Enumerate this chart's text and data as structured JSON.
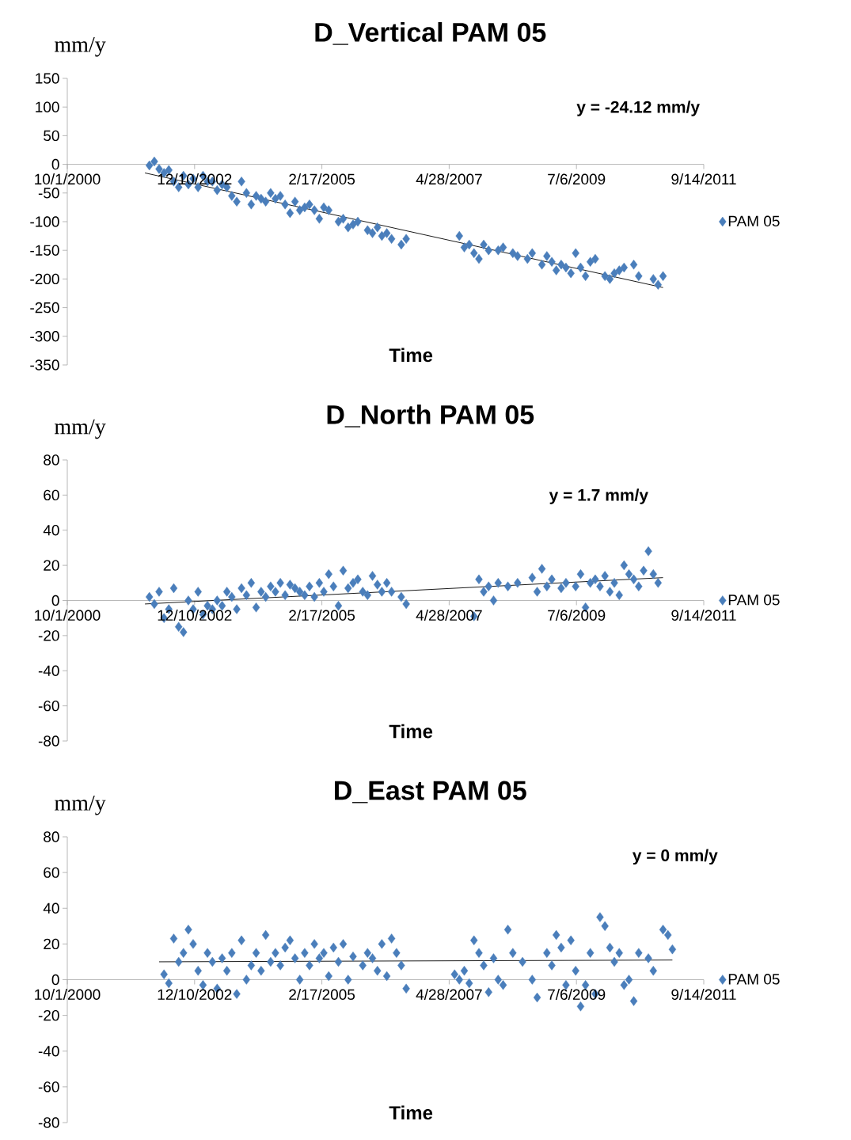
{
  "chart_data": [
    {
      "type": "scatter",
      "title": "D_Vertical PAM 05",
      "xlabel": "Time",
      "ylabel": "mm/y",
      "legend": "right",
      "annotations": [
        "y = -24.12 mm/y"
      ],
      "xlim": [
        "2000-10-01",
        "2011-09-14"
      ],
      "xticks": [
        {
          "value": "2000-10-01",
          "label": "10/1/2000"
        },
        {
          "value": "2002-12-10",
          "label": "12/10/2002"
        },
        {
          "value": "2005-02-17",
          "label": "2/17/2005"
        },
        {
          "value": "2007-04-28",
          "label": "4/28/2007"
        },
        {
          "value": "2009-07-06",
          "label": "7/6/2009"
        },
        {
          "value": "2011-09-14",
          "label": "9/14/2011"
        }
      ],
      "ylim": [
        -350,
        150
      ],
      "yticks": [
        -350,
        -300,
        -250,
        -200,
        -150,
        -100,
        -50,
        0,
        50,
        100,
        150
      ],
      "series": [
        {
          "name": "PAM 05",
          "marker": "diamond",
          "color": "#4a7ebb",
          "x": [
            "2002-03",
            "2002-04",
            "2002-05",
            "2002-06",
            "2002-07",
            "2002-08",
            "2002-09",
            "2002-10",
            "2002-11",
            "2002-12",
            "2003-01",
            "2003-02",
            "2003-03",
            "2003-04",
            "2003-05",
            "2003-06",
            "2003-07",
            "2003-08",
            "2003-09",
            "2003-10",
            "2003-11",
            "2003-12",
            "2004-01",
            "2004-02",
            "2004-03",
            "2004-04",
            "2004-05",
            "2004-06",
            "2004-07",
            "2004-08",
            "2004-09",
            "2004-10",
            "2004-11",
            "2004-12",
            "2005-01",
            "2005-02",
            "2005-03",
            "2005-04",
            "2005-06",
            "2005-07",
            "2005-08",
            "2005-09",
            "2005-10",
            "2005-12",
            "2006-01",
            "2006-02",
            "2006-03",
            "2006-04",
            "2006-05",
            "2006-07",
            "2006-08",
            "2007-07",
            "2007-08",
            "2007-09",
            "2007-10",
            "2007-11",
            "2007-12",
            "2008-01",
            "2008-03",
            "2008-04",
            "2008-06",
            "2008-07",
            "2008-09",
            "2008-10",
            "2008-12",
            "2009-01",
            "2009-02",
            "2009-03",
            "2009-04",
            "2009-05",
            "2009-06",
            "2009-07",
            "2009-08",
            "2009-09",
            "2009-10",
            "2009-11",
            "2010-01",
            "2010-02",
            "2010-03",
            "2010-04",
            "2010-05",
            "2010-07",
            "2010-08",
            "2010-11",
            "2010-12",
            "2011-01"
          ],
          "values": [
            -2,
            5,
            -8,
            -15,
            -10,
            -30,
            -40,
            -20,
            -35,
            -25,
            -40,
            -20,
            -30,
            -30,
            -45,
            -35,
            -40,
            -55,
            -65,
            -30,
            -50,
            -70,
            -55,
            -60,
            -65,
            -50,
            -60,
            -55,
            -70,
            -85,
            -65,
            -80,
            -75,
            -70,
            -80,
            -95,
            -75,
            -80,
            -100,
            -95,
            -110,
            -105,
            -100,
            -115,
            -120,
            -110,
            -125,
            -120,
            -130,
            -140,
            -130,
            -125,
            -145,
            -140,
            -155,
            -165,
            -140,
            -150,
            -150,
            -145,
            -155,
            -160,
            -165,
            -155,
            -175,
            -160,
            -170,
            -185,
            -175,
            -180,
            -190,
            -155,
            -180,
            -195,
            -170,
            -165,
            -195,
            -200,
            -190,
            -185,
            -180,
            -175,
            -195,
            -200,
            -210,
            -195
          ]
        },
        {
          "type": "line",
          "color": "#000000",
          "x": [
            "2002-02",
            "2011-01"
          ],
          "values": [
            -15,
            -215
          ]
        }
      ]
    },
    {
      "type": "scatter",
      "title": "D_North PAM 05",
      "xlabel": "Time",
      "ylabel": "mm/y",
      "legend": "right",
      "annotations": [
        "y = 1.7 mm/y"
      ],
      "xlim": [
        "2000-10-01",
        "2011-09-14"
      ],
      "xticks": [
        {
          "value": "2000-10-01",
          "label": "10/1/2000"
        },
        {
          "value": "2002-12-10",
          "label": "12/10/2002"
        },
        {
          "value": "2005-02-17",
          "label": "2/17/2005"
        },
        {
          "value": "2007-04-28",
          "label": "4/28/2007"
        },
        {
          "value": "2009-07-06",
          "label": "7/6/2009"
        },
        {
          "value": "2011-09-14",
          "label": "9/14/2011"
        }
      ],
      "ylim": [
        -80,
        80
      ],
      "yticks": [
        -80,
        -60,
        -40,
        -20,
        0,
        20,
        40,
        60,
        80
      ],
      "series": [
        {
          "name": "PAM 05",
          "marker": "diamond",
          "color": "#4a7ebb",
          "x": [
            "2002-03",
            "2002-04",
            "2002-05",
            "2002-06",
            "2002-07",
            "2002-08",
            "2002-09",
            "2002-10",
            "2002-11",
            "2002-12",
            "2003-01",
            "2003-02",
            "2003-03",
            "2003-04",
            "2003-05",
            "2003-06",
            "2003-07",
            "2003-08",
            "2003-09",
            "2003-10",
            "2003-11",
            "2003-12",
            "2004-01",
            "2004-02",
            "2004-03",
            "2004-04",
            "2004-05",
            "2004-06",
            "2004-07",
            "2004-08",
            "2004-09",
            "2004-10",
            "2004-11",
            "2004-12",
            "2005-01",
            "2005-02",
            "2005-03",
            "2005-04",
            "2005-05",
            "2005-06",
            "2005-07",
            "2005-08",
            "2005-09",
            "2005-10",
            "2005-11",
            "2005-12",
            "2006-01",
            "2006-02",
            "2006-03",
            "2006-04",
            "2006-05",
            "2006-07",
            "2006-08",
            "2007-10",
            "2007-11",
            "2007-12",
            "2008-01",
            "2008-02",
            "2008-03",
            "2008-05",
            "2008-07",
            "2008-10",
            "2008-11",
            "2008-12",
            "2009-01",
            "2009-02",
            "2009-04",
            "2009-05",
            "2009-07",
            "2009-08",
            "2009-09",
            "2009-10",
            "2009-11",
            "2009-12",
            "2010-01",
            "2010-02",
            "2010-03",
            "2010-04",
            "2010-05",
            "2010-06",
            "2010-07",
            "2010-08",
            "2010-09",
            "2010-10",
            "2010-11",
            "2010-12"
          ],
          "values": [
            2,
            -2,
            5,
            -10,
            -5,
            7,
            -15,
            -18,
            0,
            -5,
            5,
            -8,
            -3,
            -5,
            0,
            -3,
            5,
            2,
            -5,
            7,
            3,
            10,
            -4,
            5,
            2,
            8,
            5,
            10,
            3,
            9,
            7,
            5,
            3,
            8,
            2,
            10,
            5,
            15,
            8,
            -3,
            17,
            7,
            10,
            12,
            5,
            3,
            14,
            9,
            5,
            10,
            5,
            2,
            -2,
            -9,
            12,
            5,
            8,
            0,
            10,
            8,
            10,
            13,
            5,
            18,
            8,
            12,
            7,
            10,
            8,
            15,
            -4,
            10,
            12,
            8,
            14,
            5,
            10,
            3,
            20,
            15,
            12,
            8,
            17,
            28,
            15,
            10
          ]
        },
        {
          "type": "line",
          "color": "#000000",
          "x": [
            "2002-02",
            "2011-01"
          ],
          "values": [
            -2,
            13
          ]
        }
      ]
    },
    {
      "type": "scatter",
      "title": "D_East PAM 05",
      "xlabel": "Time",
      "ylabel": "mm/y",
      "legend": "right",
      "annotations": [
        "y = 0 mm/y"
      ],
      "xlim": [
        "2000-10-01",
        "2011-09-14"
      ],
      "xticks": [
        {
          "value": "2000-10-01",
          "label": "10/1/2000"
        },
        {
          "value": "2002-12-10",
          "label": "12/10/2002"
        },
        {
          "value": "2005-02-17",
          "label": "2/17/2005"
        },
        {
          "value": "2007-04-28",
          "label": "4/28/2007"
        },
        {
          "value": "2009-07-06",
          "label": "7/6/2009"
        },
        {
          "value": "2011-09-14",
          "label": "9/14/2011"
        }
      ],
      "ylim": [
        -80,
        80
      ],
      "yticks": [
        -80,
        -60,
        -40,
        -20,
        0,
        20,
        40,
        60,
        80
      ],
      "series": [
        {
          "name": "PAM 05",
          "marker": "diamond",
          "color": "#4a7ebb",
          "x": [
            "2002-06",
            "2002-07",
            "2002-08",
            "2002-09",
            "2002-10",
            "2002-11",
            "2002-12",
            "2003-01",
            "2003-02",
            "2003-03",
            "2003-04",
            "2003-05",
            "2003-06",
            "2003-07",
            "2003-08",
            "2003-09",
            "2003-10",
            "2003-11",
            "2003-12",
            "2004-01",
            "2004-02",
            "2004-03",
            "2004-04",
            "2004-05",
            "2004-06",
            "2004-07",
            "2004-08",
            "2004-09",
            "2004-10",
            "2004-11",
            "2004-12",
            "2005-01",
            "2005-02",
            "2005-03",
            "2005-04",
            "2005-05",
            "2005-06",
            "2005-07",
            "2005-08",
            "2005-09",
            "2005-11",
            "2005-12",
            "2006-01",
            "2006-02",
            "2006-03",
            "2006-04",
            "2006-05",
            "2006-06",
            "2006-07",
            "2006-08",
            "2007-06",
            "2007-07",
            "2007-08",
            "2007-09",
            "2007-10",
            "2007-11",
            "2007-12",
            "2008-01",
            "2008-02",
            "2008-03",
            "2008-04",
            "2008-05",
            "2008-06",
            "2008-08",
            "2008-10",
            "2008-11",
            "2009-01",
            "2009-02",
            "2009-03",
            "2009-04",
            "2009-05",
            "2009-06",
            "2009-07",
            "2009-08",
            "2009-09",
            "2009-10",
            "2009-11",
            "2009-12",
            "2010-01",
            "2010-02",
            "2010-03",
            "2010-04",
            "2010-05",
            "2010-06",
            "2010-07",
            "2010-08",
            "2010-10",
            "2010-11",
            "2011-01",
            "2011-02",
            "2011-03"
          ],
          "values": [
            3,
            -2,
            23,
            10,
            15,
            28,
            20,
            5,
            -3,
            15,
            10,
            -5,
            12,
            5,
            15,
            -8,
            22,
            0,
            8,
            15,
            5,
            25,
            10,
            15,
            8,
            18,
            22,
            12,
            0,
            15,
            8,
            20,
            12,
            15,
            2,
            18,
            10,
            20,
            0,
            13,
            8,
            15,
            12,
            5,
            20,
            2,
            23,
            15,
            8,
            -5,
            3,
            0,
            5,
            -2,
            22,
            15,
            8,
            -7,
            12,
            0,
            -3,
            28,
            15,
            10,
            0,
            -10,
            15,
            8,
            25,
            18,
            -3,
            22,
            5,
            -15,
            -3,
            15,
            -8,
            35,
            30,
            18,
            10,
            15,
            -3,
            0,
            -12,
            15,
            12,
            5,
            28,
            25,
            17
          ]
        },
        {
          "type": "line",
          "color": "#000000",
          "x": [
            "2002-05",
            "2011-03"
          ],
          "values": [
            10,
            11
          ]
        }
      ]
    }
  ]
}
